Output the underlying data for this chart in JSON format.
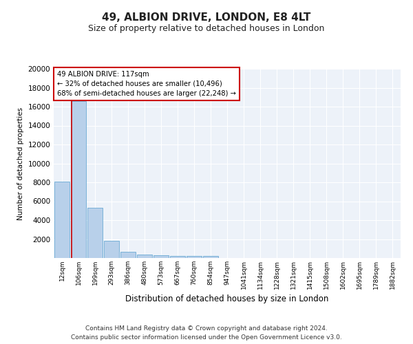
{
  "title1": "49, ALBION DRIVE, LONDON, E8 4LT",
  "title2": "Size of property relative to detached houses in London",
  "xlabel": "Distribution of detached houses by size in London",
  "ylabel": "Number of detached properties",
  "annotation_line1": "49 ALBION DRIVE: 117sqm",
  "annotation_line2": "← 32% of detached houses are smaller (10,496)",
  "annotation_line3": "68% of semi-detached houses are larger (22,248) →",
  "categories": [
    "12sqm",
    "106sqm",
    "199sqm",
    "293sqm",
    "386sqm",
    "480sqm",
    "573sqm",
    "667sqm",
    "760sqm",
    "854sqm",
    "947sqm",
    "1041sqm",
    "1134sqm",
    "1228sqm",
    "1321sqm",
    "1415sqm",
    "1508sqm",
    "1602sqm",
    "1695sqm",
    "1789sqm",
    "1882sqm"
  ],
  "values": [
    8100,
    16600,
    5300,
    1850,
    650,
    350,
    270,
    210,
    190,
    200,
    0,
    0,
    0,
    0,
    0,
    0,
    0,
    0,
    0,
    0,
    0
  ],
  "bar_color": "#b8d0ea",
  "bar_edge_color": "#6aaad4",
  "marker_color": "#cc0000",
  "ylim": [
    0,
    20000
  ],
  "yticks": [
    0,
    2000,
    4000,
    6000,
    8000,
    10000,
    12000,
    14000,
    16000,
    18000,
    20000
  ],
  "background_color": "#edf2f9",
  "grid_color": "#ffffff",
  "footer_line1": "Contains HM Land Registry data © Crown copyright and database right 2024.",
  "footer_line2": "Contains public sector information licensed under the Open Government Licence v3.0.",
  "annotation_box_edge": "#cc0000",
  "title1_fontsize": 11,
  "title2_fontsize": 9
}
